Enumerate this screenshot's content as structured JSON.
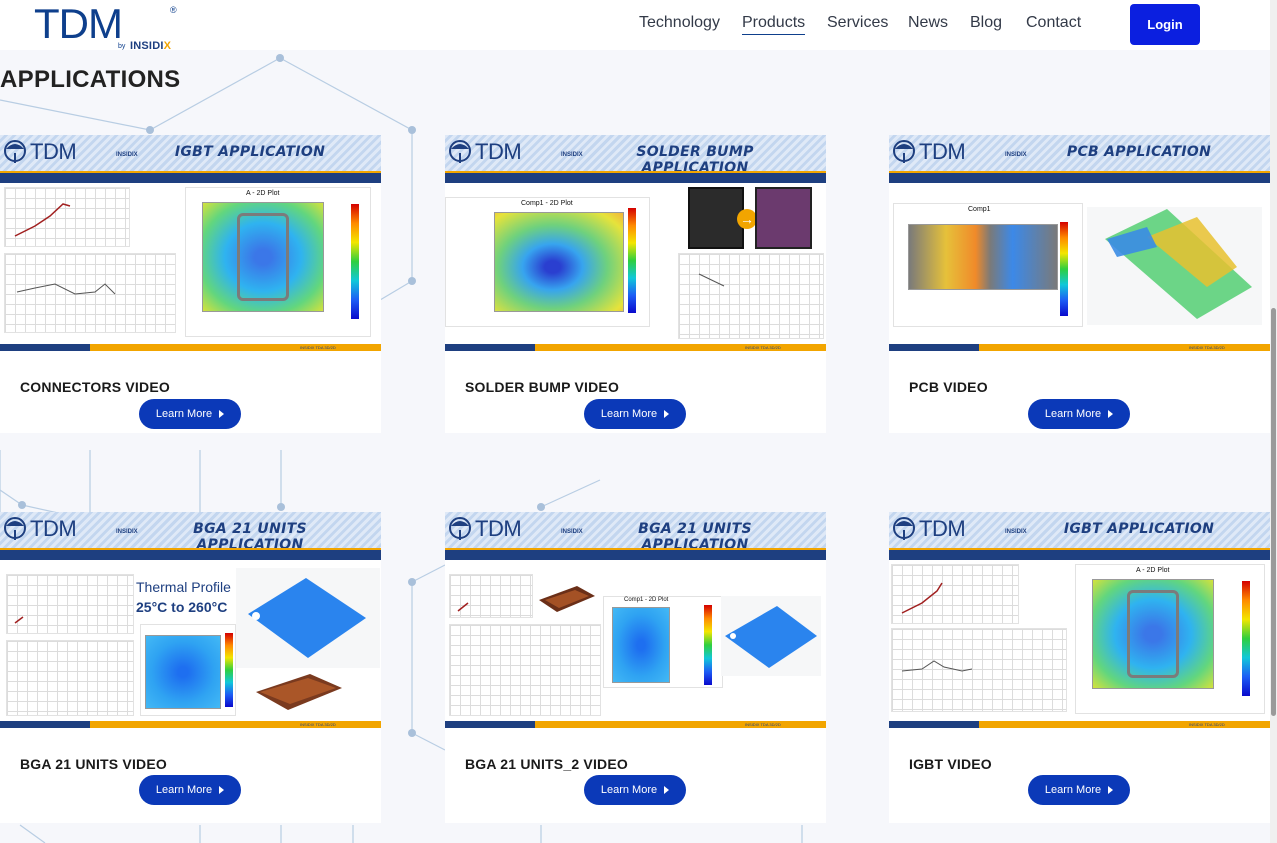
{
  "header": {
    "logo_text": "TDM",
    "logo_reg": "®",
    "logo_by": "by",
    "logo_sub_main": "INSIDI",
    "logo_sub_x": "X",
    "nav": [
      {
        "label": "Technology"
      },
      {
        "label": "Products"
      },
      {
        "label": "Services"
      },
      {
        "label": "News"
      },
      {
        "label": "Blog"
      },
      {
        "label": "Contact"
      }
    ],
    "login_label": "Login"
  },
  "section_title": "APPLICATIONS",
  "cards": [
    {
      "banner_title": "IGBT APPLICATION",
      "label": "CONNECTORS VIDEO",
      "button": "Learn More",
      "plot_title": "A - 2D Plot"
    },
    {
      "banner_title": "SOLDER BUMP APPLICATION",
      "label": "SOLDER BUMP VIDEO",
      "button": "Learn More",
      "plot_title": "Comp1 - 2D Plot"
    },
    {
      "banner_title": "PCB APPLICATION",
      "label": "PCB VIDEO",
      "button": "Learn More",
      "plot_title": "Comp1"
    },
    {
      "banner_title": "BGA 21 UNITS APPLICATION",
      "label": "BGA 21 UNITS VIDEO",
      "button": "Learn More",
      "plot_title": "Thermal Profile",
      "plot_subtitle": "25°C to 260°C"
    },
    {
      "banner_title": "BGA 21 UNITS APPLICATION",
      "label": "BGA 21 UNITS_2 VIDEO",
      "button": "Learn More",
      "plot_title": "Comp1 - 2D Plot"
    },
    {
      "banner_title": "IGBT APPLICATION",
      "label": "IGBT VIDEO",
      "button": "Learn More",
      "plot_title": "A - 2D Plot"
    }
  ],
  "banner_logo": "TDM",
  "banner_logo_small": "INSIDIX",
  "banner_footer": "INSIDIX TDA 3D/2D",
  "colors": {
    "brand_blue": "#0e3f8c",
    "login_blue": "#0b1fe0",
    "button_blue": "#0b39b8",
    "gold": "#f2a500"
  }
}
